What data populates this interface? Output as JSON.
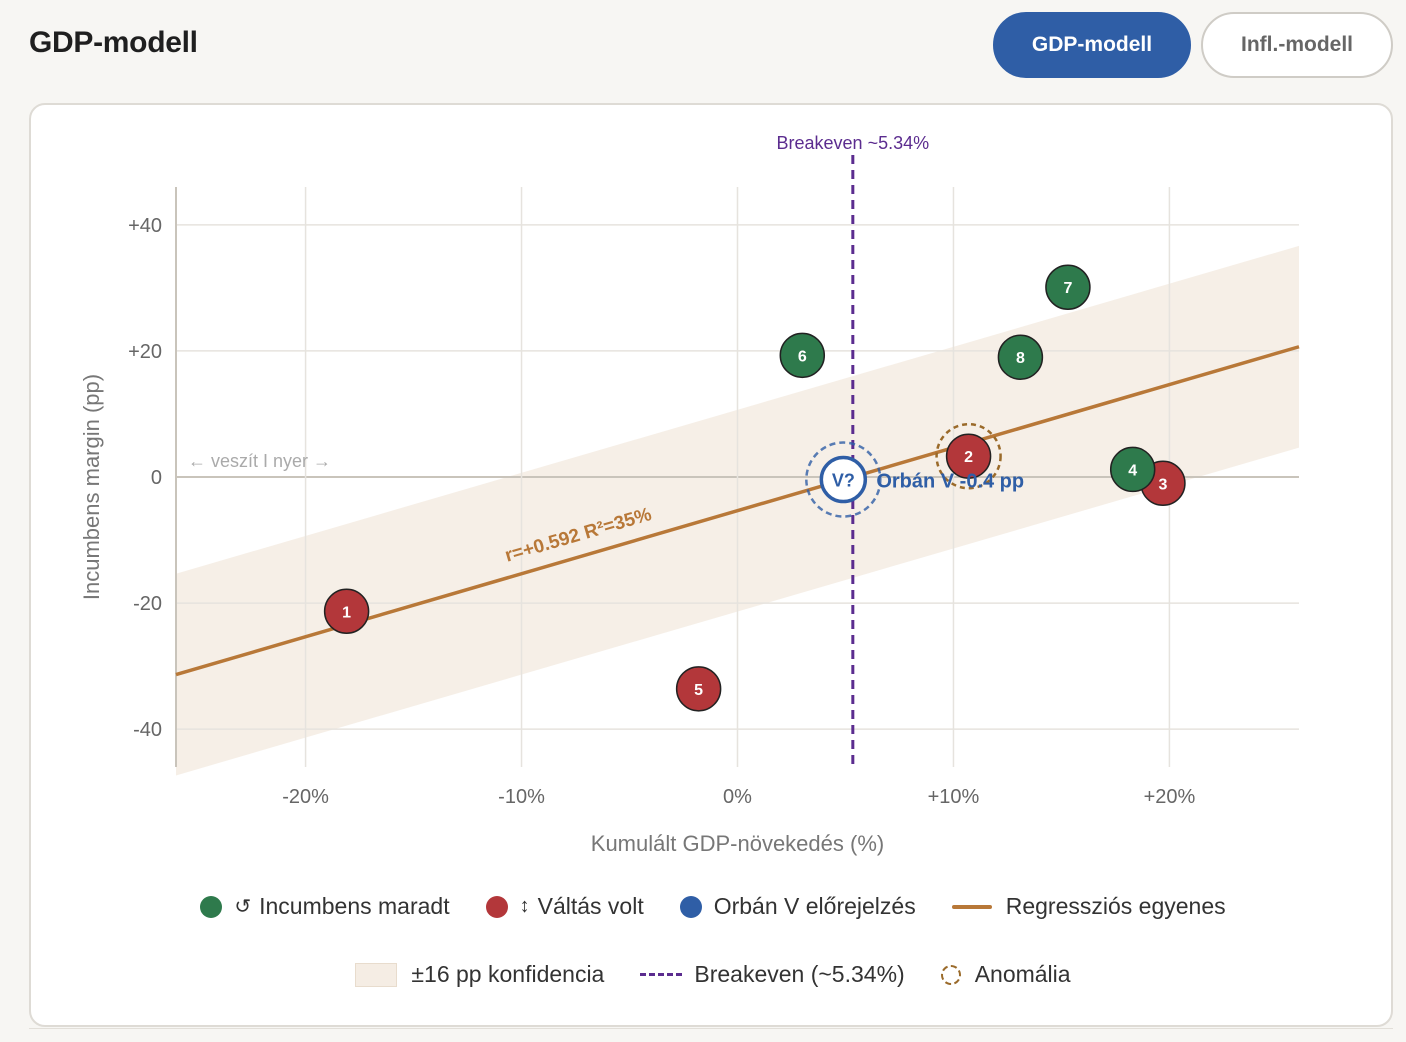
{
  "header": {
    "title": "GDP-modell",
    "tabs": [
      {
        "label": "GDP-modell",
        "active": true
      },
      {
        "label": "Infl.-modell",
        "active": false
      }
    ]
  },
  "colors": {
    "kept": "#2e7a4c",
    "changed": "#b3373a",
    "forecast": "#2f5ea6",
    "regression": "#b87838",
    "band": "#f5ede4",
    "breakeven": "#5b2c8f",
    "anomaly": "#9a6a2a"
  },
  "chart_data": {
    "type": "scatter",
    "xlabel": "Kumulált GDP-növekedés (%)",
    "ylabel": "Incumbens margin (pp)",
    "xlim": [
      -26,
      26
    ],
    "ylim": [
      -46,
      46
    ],
    "xticks": [
      -20,
      -10,
      0,
      10,
      20
    ],
    "xtick_labels": [
      "-20%",
      "-10%",
      "0%",
      "+10%",
      "+20%"
    ],
    "yticks": [
      40,
      20,
      0,
      -20,
      -40
    ],
    "ytick_labels": [
      "+40",
      "+20",
      "0",
      "-20",
      "-40"
    ],
    "zero_hint": "← veszít  I  nyer →",
    "points": [
      {
        "label": "1",
        "x": -18.1,
        "y": -21.3,
        "group": "changed"
      },
      {
        "label": "2",
        "x": 10.7,
        "y": 3.3,
        "group": "changed",
        "anomaly": true
      },
      {
        "label": "3",
        "x": 19.7,
        "y": -1.0,
        "group": "changed"
      },
      {
        "label": "4",
        "x": 18.3,
        "y": 1.2,
        "group": "kept"
      },
      {
        "label": "5",
        "x": -1.8,
        "y": -33.6,
        "group": "changed"
      },
      {
        "label": "6",
        "x": 3.0,
        "y": 19.3,
        "group": "kept"
      },
      {
        "label": "7",
        "x": 15.3,
        "y": 30.1,
        "group": "kept"
      },
      {
        "label": "8",
        "x": 13.1,
        "y": 19.0,
        "group": "kept"
      }
    ],
    "forecast": {
      "label": "V?",
      "x": 4.9,
      "y": -0.4,
      "annotation": "Orbán V  -0.4 pp"
    },
    "regression": {
      "slope": 1.0,
      "intercept": -5.34,
      "label": "r=+0.592  R²=35%",
      "band_pp": 16
    },
    "breakeven": {
      "x": 5.34,
      "label": "Breakeven ~5.34%"
    }
  },
  "legend": {
    "kept": {
      "glyph": "↺",
      "label": "Incumbens maradt"
    },
    "changed": {
      "glyph": "↕",
      "label": "Váltás volt"
    },
    "forecast": {
      "label": "Orbán V előrejelzés"
    },
    "regression": {
      "label": "Regressziós egyenes"
    },
    "band": {
      "label": "±16 pp konfidencia"
    },
    "breakeven": {
      "label": "Breakeven (~5.34%)"
    },
    "anomaly": {
      "label": "Anomália"
    }
  }
}
